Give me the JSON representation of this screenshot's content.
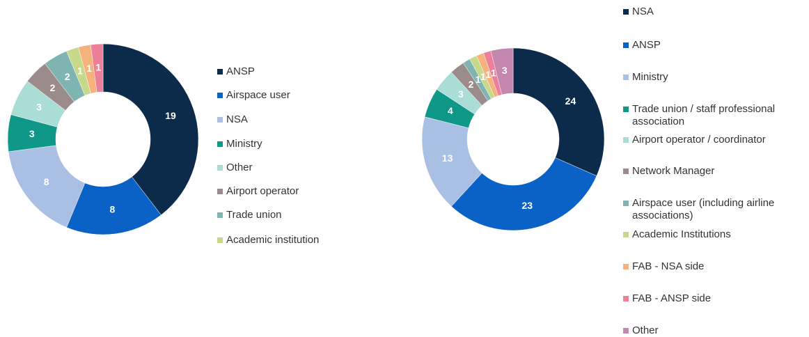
{
  "chart_data": [
    {
      "type": "pie",
      "donut": true,
      "legend": "right",
      "categories": [
        "ANSP",
        "Airspace user",
        "NSA",
        "Ministry",
        "Other",
        "Airport operator",
        "Trade union",
        "Academic institution",
        null,
        null
      ],
      "values": [
        19,
        8,
        8,
        3,
        3,
        2,
        2,
        1,
        1,
        1
      ],
      "colors": [
        "#0c2b4b",
        "#0a62c6",
        "#a9bfe4",
        "#0f9888",
        "#a9ddd5",
        "#9b8b8b",
        "#7eb4b1",
        "#c6d98b",
        "#f6b27c",
        "#ee7f98"
      ]
    },
    {
      "type": "pie",
      "donut": true,
      "legend": "right",
      "categories": [
        "NSA",
        "ANSP",
        "Ministry",
        "Trade union / staff professional association",
        "Airport operator / coordinator",
        "Network Manager",
        "Airspace user (including airline associations)",
        "Academic Institutions",
        "FAB - NSA side",
        "FAB - ANSP side",
        "Other"
      ],
      "values": [
        24,
        23,
        13,
        4,
        3,
        2,
        1,
        1,
        1,
        1,
        3
      ],
      "colors": [
        "#0c2b4b",
        "#0a62c6",
        "#a9bfe4",
        "#0f9888",
        "#a9ddd5",
        "#9b8b8b",
        "#7eb4b1",
        "#c6d98b",
        "#f6b27c",
        "#ee7f98",
        "#c487b0"
      ]
    }
  ]
}
